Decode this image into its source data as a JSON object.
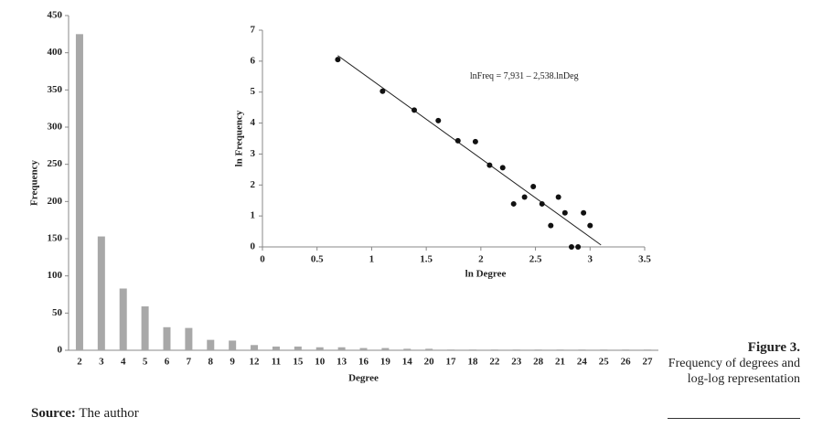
{
  "chart_data": [
    {
      "type": "bar",
      "xlabel": "Degree",
      "ylabel": "Frequency",
      "color": "#a8a8a8",
      "categories": [
        "2",
        "3",
        "4",
        "5",
        "6",
        "7",
        "8",
        "9",
        "12",
        "11",
        "15",
        "10",
        "13",
        "16",
        "19",
        "14",
        "20",
        "17",
        "18",
        "22",
        "23",
        "28",
        "21",
        "24",
        "25",
        "26",
        "27"
      ],
      "values": [
        425,
        153,
        83,
        59,
        31,
        30,
        14,
        13,
        7,
        5,
        5,
        4,
        4,
        3,
        3,
        2,
        2,
        1,
        1,
        1,
        1,
        1,
        1,
        1,
        1,
        1,
        1
      ],
      "ylim": [
        0,
        450
      ],
      "yticks": [
        0,
        50,
        100,
        150,
        200,
        250,
        300,
        350,
        400,
        450
      ]
    },
    {
      "type": "scatter",
      "xlabel": "ln Degree",
      "ylabel": "ln Frequency",
      "color": "#111",
      "x": [
        0.69,
        1.1,
        1.39,
        1.61,
        1.79,
        1.95,
        2.08,
        2.2,
        2.3,
        2.4,
        2.48,
        2.56,
        2.64,
        2.71,
        2.77,
        2.83,
        2.89,
        2.94,
        3.0
      ],
      "values": [
        6.05,
        5.03,
        4.42,
        4.08,
        3.43,
        3.4,
        2.64,
        2.56,
        1.39,
        1.61,
        1.95,
        1.39,
        0.69,
        1.61,
        1.1,
        0,
        0,
        1.1,
        0.69
      ],
      "trendline": {
        "intercept": 7.931,
        "slope": -2.538
      },
      "annotation": "lnFreq = 7,931 – 2,538.lnDeg",
      "xlim": [
        0,
        3.5
      ],
      "xticks": [
        0,
        0.5,
        1,
        1.5,
        2,
        2.5,
        3,
        3.5
      ],
      "ylim": [
        0,
        7
      ],
      "yticks": [
        0,
        1,
        2,
        3,
        4,
        5,
        6,
        7
      ]
    }
  ],
  "caption": {
    "label": "Figure 3.",
    "text": "Frequency of degrees and log-log representation"
  },
  "source": {
    "label": "Source:",
    "text": "The author"
  }
}
